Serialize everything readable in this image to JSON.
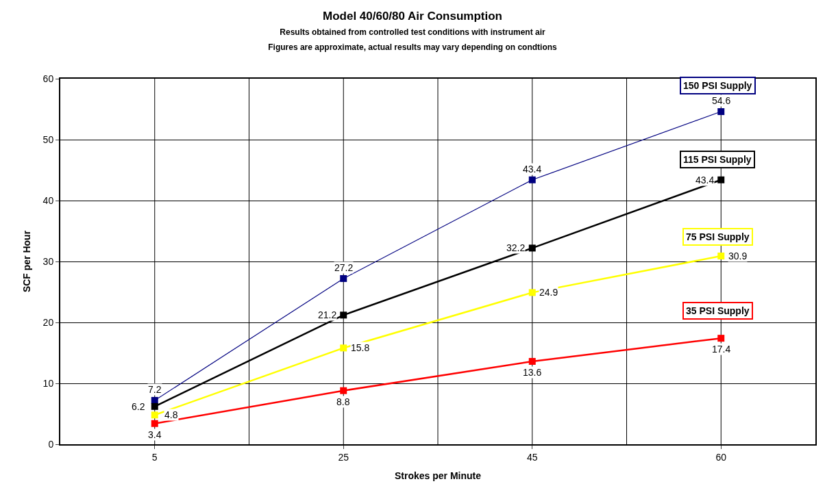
{
  "chart_data": {
    "type": "line",
    "title": "Model 40/60/80 Air Consumption",
    "subtitle": "Results obtained from controlled test conditions with instrument air\nFigures are approximate, actual results may vary depending on condtions",
    "xlabel": "Strokes per Minute",
    "ylabel": "SCF per Hour",
    "categories": [
      "5",
      "25",
      "45",
      "60"
    ],
    "series": [
      {
        "name": "150 PSI Supply",
        "color": "#000080",
        "values": [
          7.2,
          27.2,
          43.4,
          54.6
        ]
      },
      {
        "name": "115 PSI Supply",
        "color": "#000000",
        "values": [
          6.2,
          21.2,
          32.2,
          43.4
        ]
      },
      {
        "name": "75 PSI Supply",
        "color": "#ffff00",
        "values": [
          4.8,
          15.8,
          24.9,
          30.9
        ]
      },
      {
        "name": "35 PSI Supply",
        "color": "#ff0000",
        "values": [
          3.4,
          8.8,
          13.6,
          17.4
        ]
      }
    ],
    "ylim": [
      0,
      60
    ],
    "yticks": [
      0,
      10,
      20,
      30,
      40,
      50,
      60
    ],
    "grid": true,
    "marker": "square",
    "line_style": "solid",
    "data_labels": true,
    "legend": false
  }
}
